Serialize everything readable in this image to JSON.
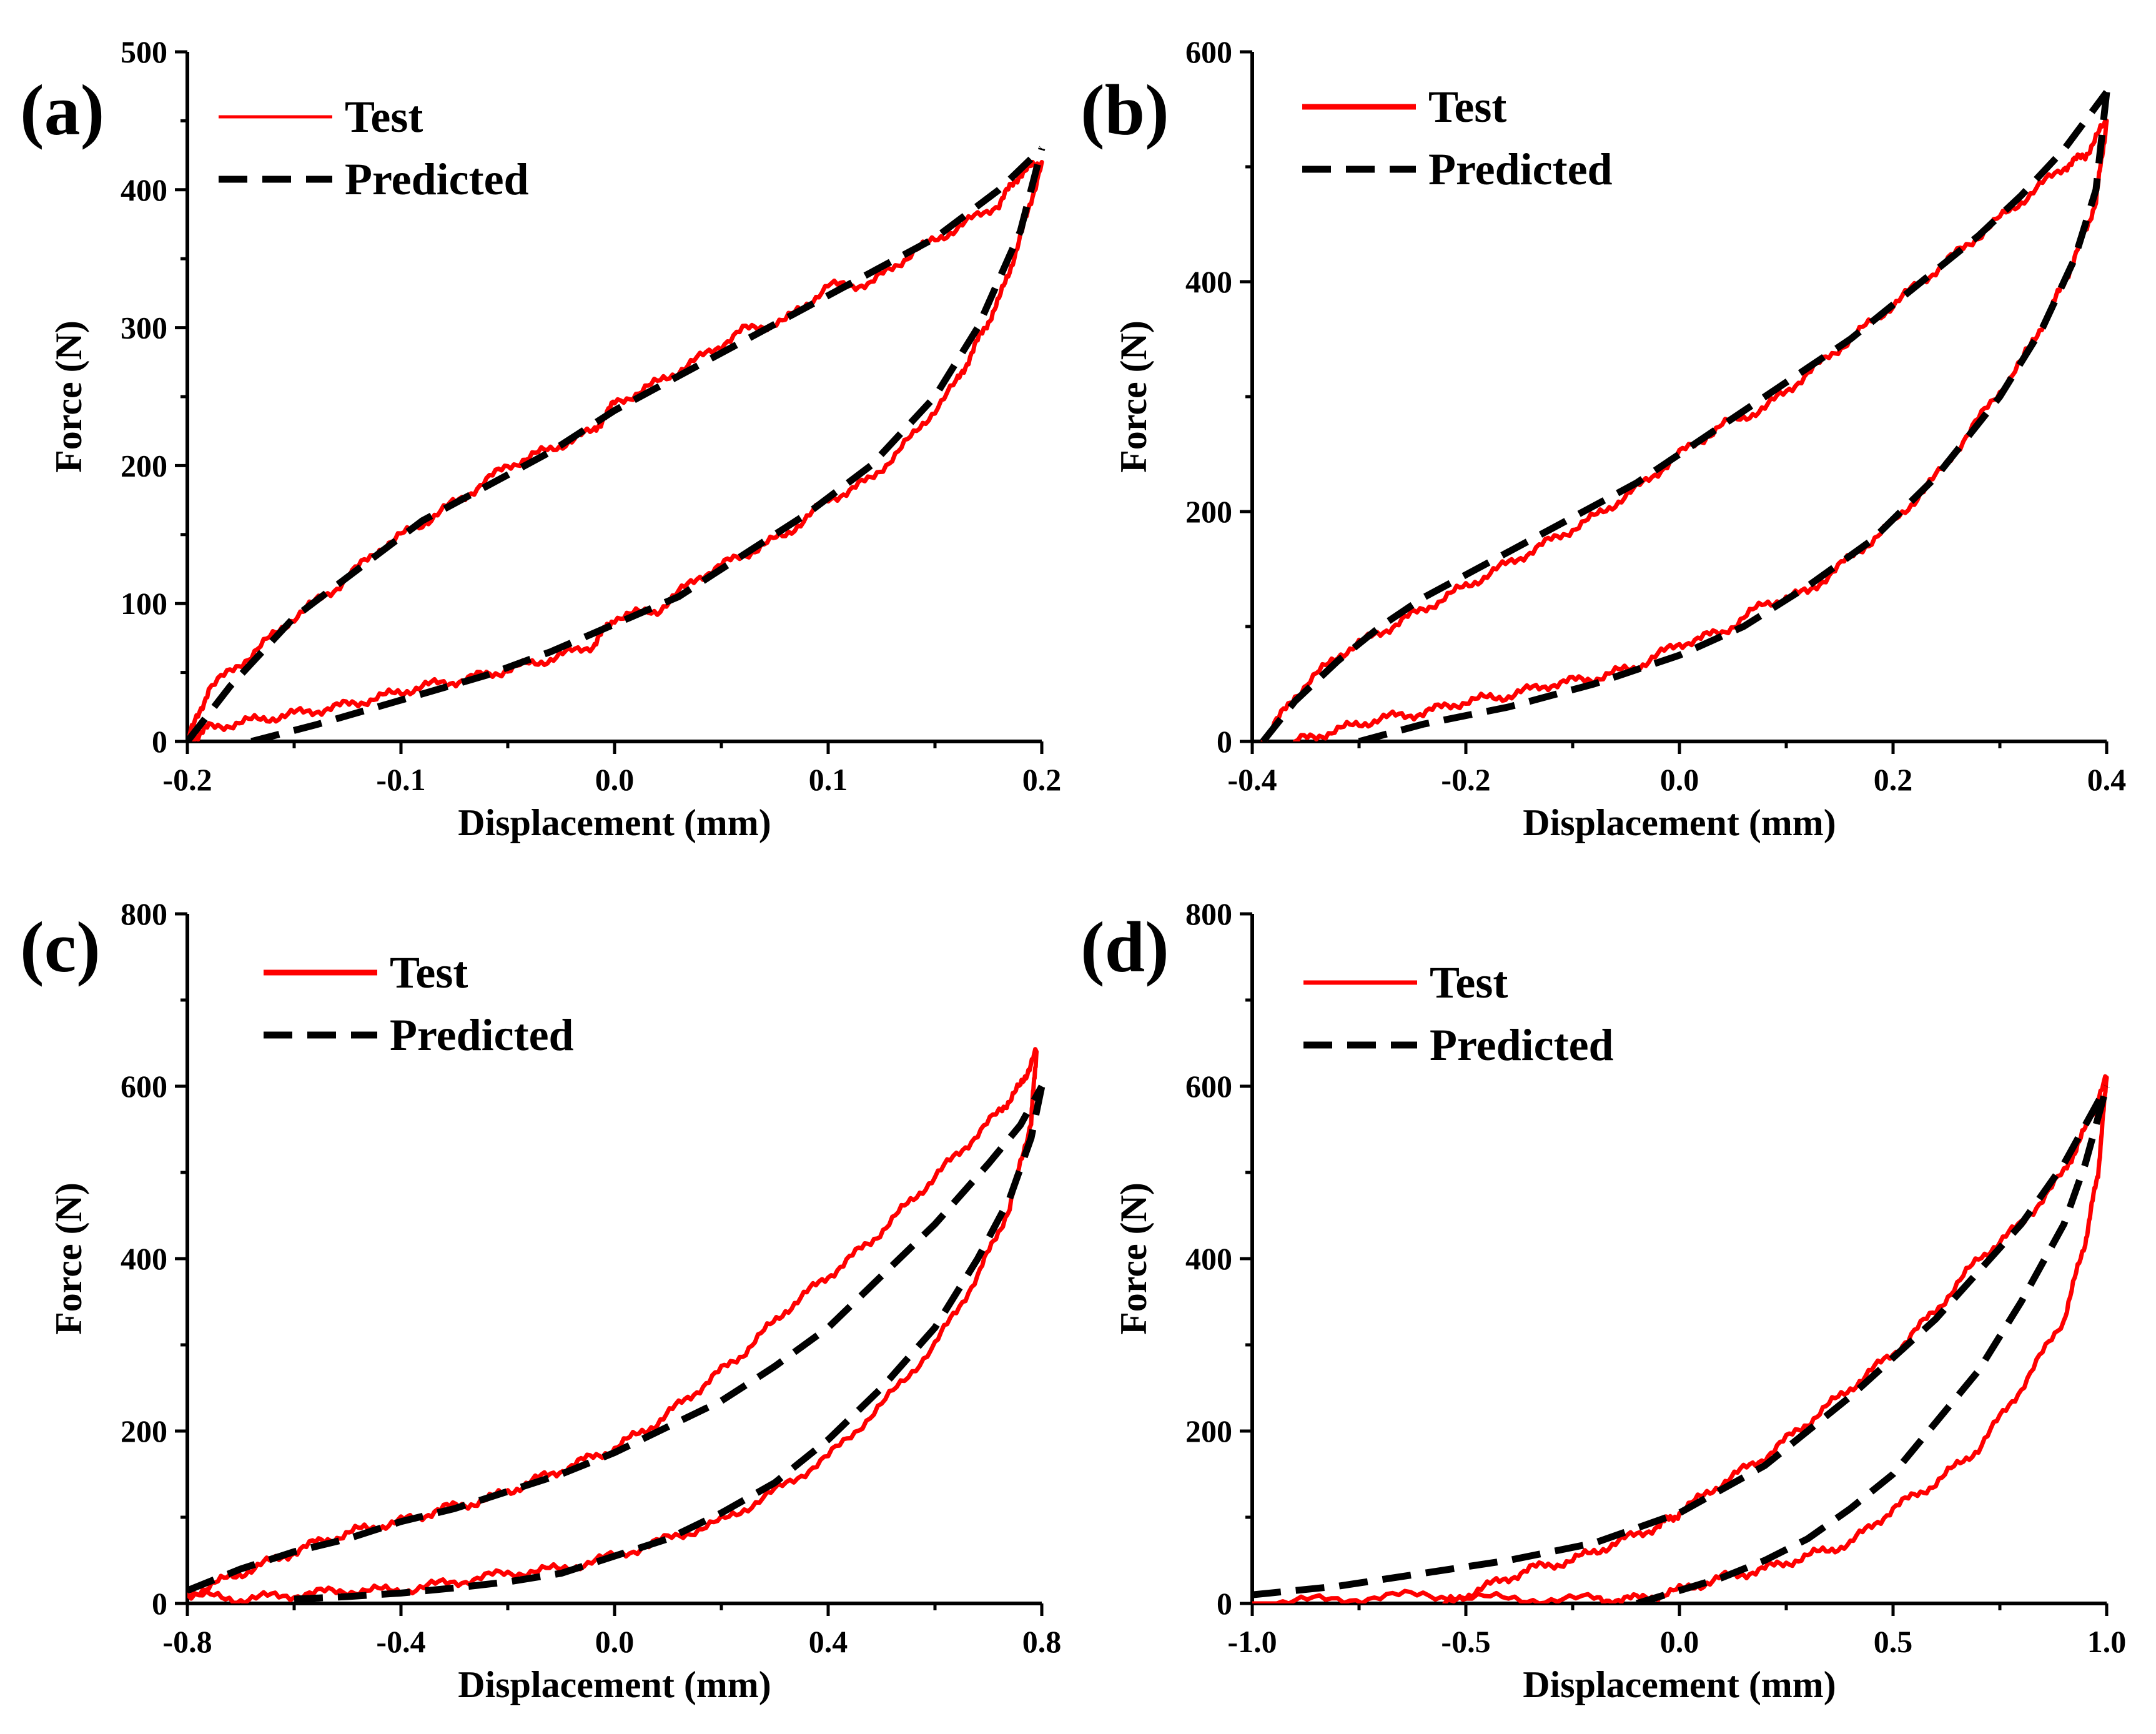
{
  "colors": {
    "test": "#ff0000",
    "predicted": "#000000"
  },
  "chart_data": [
    {
      "id": "a",
      "type": "line",
      "panel_label": "(a)",
      "xlabel": "Displacement (mm)",
      "ylabel": "Force (N)",
      "xlim": [
        -0.2,
        0.2
      ],
      "ylim": [
        0,
        500
      ],
      "xticks": [
        -0.2,
        -0.1,
        0.0,
        0.1,
        0.2
      ],
      "xtick_labels": [
        "-0.2",
        "-0.1",
        "0.0",
        "0.1",
        "0.2"
      ],
      "yticks": [
        0,
        100,
        200,
        300,
        400,
        500
      ],
      "ytick_labels": [
        "0",
        "100",
        "200",
        "300",
        "400",
        "500"
      ],
      "legend": {
        "position": "top-left",
        "entries": [
          "Test",
          "Predicted"
        ]
      },
      "series": [
        {
          "name": "Test",
          "upper": {
            "x": [
              -0.2,
              -0.19,
              -0.17,
              -0.15,
              -0.13,
              -0.11,
              -0.09,
              -0.07,
              -0.05,
              -0.03,
              -0.01,
              0.0,
              0.02,
              0.04,
              0.06,
              0.08,
              0.1,
              0.12,
              0.14,
              0.16,
              0.18,
              0.19,
              0.2
            ],
            "y": [
              0,
              38,
              63,
              90,
              112,
              140,
              158,
              178,
              200,
              212,
              225,
              245,
              260,
              278,
              298,
              305,
              330,
              332,
              355,
              372,
              390,
              412,
              420
            ]
          },
          "lower": {
            "x": [
              -0.2,
              -0.19,
              -0.17,
              -0.15,
              -0.13,
              -0.11,
              -0.09,
              -0.07,
              -0.05,
              -0.03,
              -0.01,
              0.0,
              0.02,
              0.04,
              0.06,
              0.08,
              0.1,
              0.12,
              0.14,
              0.16,
              0.17,
              0.18,
              0.19,
              0.2
            ],
            "y": [
              0,
              10,
              15,
              20,
              25,
              32,
              40,
              45,
              52,
              60,
              70,
              90,
              95,
              120,
              135,
              150,
              175,
              190,
              222,
              260,
              290,
              320,
              365,
              420
            ]
          }
        },
        {
          "name": "Predicted",
          "upper": {
            "x": [
              -0.2,
              -0.18,
              -0.15,
              -0.12,
              -0.09,
              -0.06,
              -0.03,
              0.0,
              0.03,
              0.06,
              0.09,
              0.12,
              0.15,
              0.18,
              0.2
            ],
            "y": [
              0,
              40,
              90,
              125,
              160,
              185,
              210,
              240,
              265,
              290,
              315,
              340,
              365,
              400,
              430
            ]
          },
          "lower": {
            "x": [
              -0.17,
              -0.14,
              -0.1,
              -0.06,
              -0.03,
              0.0,
              0.03,
              0.06,
              0.09,
              0.12,
              0.15,
              0.17,
              0.19,
              0.2
            ],
            "y": [
              0,
              12,
              30,
              48,
              65,
              85,
              105,
              135,
              165,
              200,
              250,
              300,
              370,
              430
            ]
          }
        }
      ]
    },
    {
      "id": "b",
      "type": "line",
      "panel_label": "(b)",
      "xlabel": "Displacement (mm)",
      "ylabel": "Force (N)",
      "xlim": [
        -0.4,
        0.4
      ],
      "ylim": [
        0,
        600
      ],
      "xticks": [
        -0.4,
        -0.2,
        0.0,
        0.2,
        0.4
      ],
      "xtick_labels": [
        "-0.4",
        "-0.2",
        "0.0",
        "0.2",
        "0.4"
      ],
      "yticks": [
        0,
        200,
        400,
        600
      ],
      "ytick_labels": [
        "0",
        "200",
        "400",
        "600"
      ],
      "legend": {
        "position": "top-left",
        "entries": [
          "Test",
          "Predicted"
        ]
      },
      "series": [
        {
          "name": "Test",
          "upper": {
            "x": [
              -0.39,
              -0.36,
              -0.32,
              -0.28,
              -0.24,
              -0.2,
              -0.16,
              -0.12,
              -0.08,
              -0.04,
              0.0,
              0.04,
              0.08,
              0.12,
              0.16,
              0.2,
              0.24,
              0.28,
              0.32,
              0.36,
              0.38,
              0.4
            ],
            "y": [
              0,
              40,
              75,
              95,
              115,
              135,
              155,
              175,
              195,
              220,
              250,
              275,
              290,
              320,
              350,
              380,
              410,
              440,
              470,
              500,
              510,
              540
            ]
          },
          "lower": {
            "x": [
              -0.36,
              -0.32,
              -0.28,
              -0.24,
              -0.2,
              -0.16,
              -0.12,
              -0.08,
              -0.04,
              0.0,
              0.04,
              0.08,
              0.12,
              0.16,
              0.2,
              0.24,
              0.28,
              0.32,
              0.35,
              0.37,
              0.39,
              0.4
            ],
            "y": [
              0,
              10,
              20,
              25,
              35,
              40,
              50,
              55,
              65,
              85,
              95,
              120,
              130,
              160,
              190,
              230,
              280,
              330,
              380,
              420,
              470,
              540
            ]
          }
        },
        {
          "name": "Predicted",
          "upper": {
            "x": [
              -0.39,
              -0.36,
              -0.32,
              -0.28,
              -0.24,
              -0.2,
              -0.16,
              -0.12,
              -0.08,
              -0.04,
              0.0,
              0.04,
              0.08,
              0.12,
              0.16,
              0.2,
              0.24,
              0.28,
              0.32,
              0.36,
              0.4
            ],
            "y": [
              0,
              35,
              70,
              100,
              125,
              145,
              165,
              185,
              205,
              225,
              250,
              275,
              300,
              325,
              350,
              380,
              410,
              440,
              475,
              515,
              565
            ]
          },
          "lower": {
            "x": [
              -0.3,
              -0.24,
              -0.16,
              -0.08,
              0.0,
              0.06,
              0.12,
              0.18,
              0.24,
              0.3,
              0.34,
              0.37,
              0.39,
              0.4
            ],
            "y": [
              0,
              15,
              30,
              50,
              75,
              100,
              135,
              175,
              230,
              300,
              360,
              420,
              480,
              565
            ]
          }
        }
      ]
    },
    {
      "id": "c",
      "type": "line",
      "panel_label": "(c)",
      "xlabel": "Displacement (mm)",
      "ylabel": "Force (N)",
      "xlim": [
        -0.8,
        0.8
      ],
      "ylim": [
        0,
        800
      ],
      "xticks": [
        -0.8,
        -0.4,
        0.0,
        0.4,
        0.8
      ],
      "xtick_labels": [
        "-0.8",
        "-0.4",
        "0.0",
        "0.4",
        "0.8"
      ],
      "yticks": [
        0,
        200,
        400,
        600,
        800
      ],
      "ytick_labels": [
        "0",
        "200",
        "400",
        "600",
        "800"
      ],
      "legend": {
        "position": "top-left",
        "entries": [
          "Test",
          "Predicted"
        ]
      },
      "series": [
        {
          "name": "Test",
          "upper": {
            "x": [
              -0.8,
              -0.72,
              -0.64,
              -0.56,
              -0.48,
              -0.4,
              -0.32,
              -0.24,
              -0.16,
              -0.08,
              0.0,
              0.08,
              0.16,
              0.24,
              0.32,
              0.4,
              0.48,
              0.56,
              0.64,
              0.72,
              0.76,
              0.79
            ],
            "y": [
              10,
              30,
              50,
              70,
              85,
              95,
              110,
              120,
              140,
              160,
              180,
              210,
              250,
              290,
              340,
              380,
              420,
              470,
              520,
              570,
              600,
              640
            ]
          },
          "lower": {
            "x": [
              -0.8,
              -0.7,
              -0.6,
              -0.5,
              -0.4,
              -0.3,
              -0.2,
              -0.1,
              0.0,
              0.1,
              0.2,
              0.3,
              0.4,
              0.5,
              0.6,
              0.68,
              0.74,
              0.78,
              0.79
            ],
            "y": [
              10,
              5,
              10,
              15,
              15,
              25,
              35,
              40,
              55,
              75,
              95,
              130,
              170,
              230,
              300,
              380,
              460,
              560,
              640
            ]
          }
        },
        {
          "name": "Predicted",
          "upper": {
            "x": [
              -0.8,
              -0.7,
              -0.6,
              -0.5,
              -0.4,
              -0.3,
              -0.2,
              -0.1,
              0.0,
              0.1,
              0.2,
              0.3,
              0.4,
              0.5,
              0.6,
              0.7,
              0.76,
              0.8
            ],
            "y": [
              15,
              40,
              60,
              75,
              95,
              110,
              130,
              150,
              175,
              205,
              235,
              275,
              320,
              380,
              440,
              510,
              555,
              600
            ]
          },
          "lower": {
            "x": [
              -0.6,
              -0.5,
              -0.4,
              -0.3,
              -0.2,
              -0.1,
              0.0,
              0.1,
              0.2,
              0.3,
              0.4,
              0.5,
              0.6,
              0.68,
              0.74,
              0.78,
              0.8
            ],
            "y": [
              5,
              8,
              12,
              18,
              25,
              35,
              55,
              75,
              105,
              140,
              190,
              250,
              320,
              400,
              470,
              540,
              600
            ]
          }
        }
      ]
    },
    {
      "id": "d",
      "type": "line",
      "panel_label": "(d)",
      "xlabel": "Displacement (mm)",
      "ylabel": "Force (N)",
      "xlim": [
        -1.0,
        1.0
      ],
      "ylim": [
        0,
        800
      ],
      "xticks": [
        -1.0,
        -0.5,
        0.0,
        0.5,
        1.0
      ],
      "xtick_labels": [
        "-1.0",
        "-0.5",
        "0.0",
        "0.5",
        "1.0"
      ],
      "yticks": [
        0,
        200,
        400,
        600,
        800
      ],
      "ytick_labels": [
        "0",
        "200",
        "400",
        "600",
        "800"
      ],
      "legend": {
        "position": "top-left",
        "entries": [
          "Test",
          "Predicted"
        ]
      },
      "series": [
        {
          "name": "Test",
          "upper": {
            "x": [
              -0.55,
              -0.45,
              -0.35,
              -0.25,
              -0.15,
              -0.05,
              0.0,
              0.1,
              0.2,
              0.3,
              0.4,
              0.5,
              0.6,
              0.7,
              0.8,
              0.9,
              0.95,
              1.0
            ],
            "y": [
              0,
              20,
              40,
              50,
              70,
              90,
              105,
              140,
              170,
              210,
              250,
              290,
              340,
              400,
              440,
              500,
              550,
              610
            ]
          },
          "lower": {
            "x": [
              -1.0,
              -0.8,
              -0.6,
              -0.4,
              -0.2,
              -0.1,
              0.0,
              0.1,
              0.2,
              0.3,
              0.4,
              0.5,
              0.6,
              0.7,
              0.8,
              0.9,
              0.95,
              0.98,
              1.0
            ],
            "y": [
              0,
              5,
              10,
              5,
              5,
              5,
              15,
              30,
              40,
              55,
              70,
              110,
              140,
              180,
              250,
              330,
              420,
              500,
              610
            ]
          }
        },
        {
          "name": "Predicted",
          "upper": {
            "x": [
              -1.0,
              -0.8,
              -0.6,
              -0.4,
              -0.2,
              0.0,
              0.2,
              0.4,
              0.6,
              0.8,
              0.9,
              1.0
            ],
            "y": [
              10,
              20,
              35,
              50,
              70,
              105,
              160,
              240,
              330,
              440,
              510,
              600
            ]
          },
          "lower": {
            "x": [
              -0.1,
              0.0,
              0.1,
              0.2,
              0.3,
              0.4,
              0.5,
              0.6,
              0.7,
              0.8,
              0.9,
              0.95,
              1.0
            ],
            "y": [
              0,
              15,
              30,
              50,
              75,
              110,
              150,
              210,
              270,
              350,
              440,
              510,
              600
            ]
          }
        }
      ]
    }
  ]
}
